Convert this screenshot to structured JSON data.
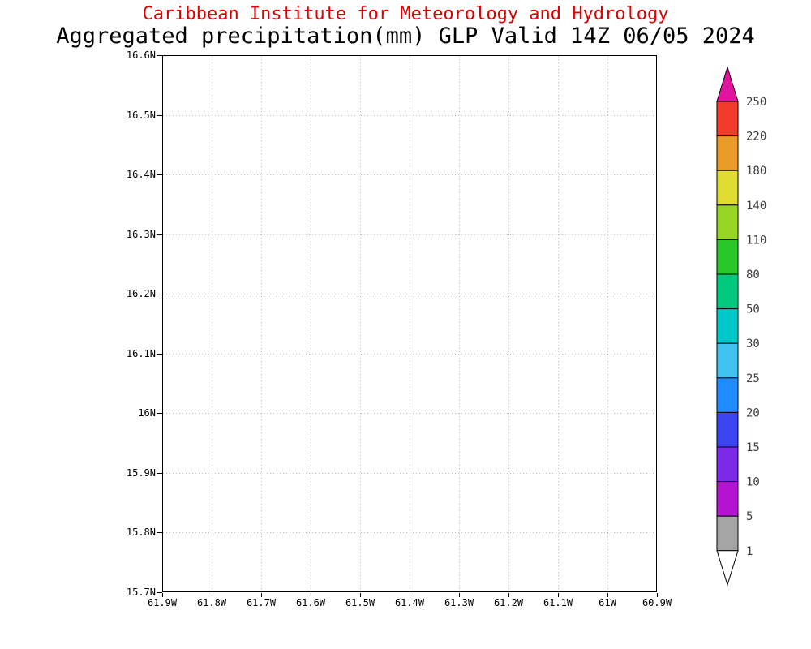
{
  "header": {
    "line1": "Caribbean Institute for Meteorology and Hydrology",
    "line2": "Aggregated precipitation(mm) GLP Valid 14Z 06/05 2024",
    "line1_color": "#e00000",
    "line2_color": "#000000"
  },
  "chart_data": {
    "type": "heatmap",
    "subtitle": "Caribbean Institute for Meteorology and Hydrology",
    "title": "Aggregated precipitation(mm) GLP Valid 14Z 06/05 2024",
    "variable": "Aggregated precipitation",
    "units": "mm",
    "region_code": "GLP",
    "valid_time": "14Z 06/05 2024",
    "x_tick_labels": [
      "61.9W",
      "61.8W",
      "61.7W",
      "61.6W",
      "61.5W",
      "61.4W",
      "61.3W",
      "61.2W",
      "61.1W",
      "61W",
      "60.9W"
    ],
    "y_tick_labels": [
      "16.6N",
      "16.5N",
      "16.4N",
      "16.3N",
      "16.2N",
      "16.1N",
      "16N",
      "15.9N",
      "15.8N",
      "15.7N"
    ],
    "x_range": "61.9W to 60.9W",
    "y_range": "16.6N (top) to 15.7N (bottom)",
    "grid": true,
    "values": [],
    "values_note": "Map area is blank - no precipitation at or above the 1 mm threshold is shaded anywhere in the domain",
    "colorbar": {
      "levels": [
        1,
        5,
        10,
        15,
        20,
        25,
        30,
        50,
        80,
        110,
        140,
        180,
        220,
        250
      ],
      "colors_bottom_to_top": [
        "#ffffff",
        "#a5a5a5",
        "#b414d2",
        "#7d2ae8",
        "#3c46f0",
        "#1e8cff",
        "#41c3f0",
        "#00c8c8",
        "#00c87d",
        "#28c828",
        "#96d723",
        "#e1dc32",
        "#eb9c28",
        "#f03c28",
        "#e114a0"
      ],
      "label_color": "#404040"
    },
    "style_colors": {
      "grid_gray": "#b9b9b9",
      "frame": "#000000"
    }
  }
}
